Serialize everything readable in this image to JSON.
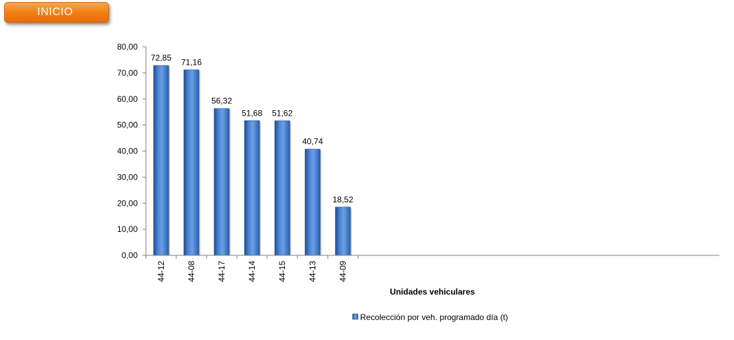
{
  "nav": {
    "inicio_label": "INICIO"
  },
  "colors": {
    "button_orange": "#f27c12",
    "bar_dark": "#2a5fa8",
    "bar_light": "#5d95e0",
    "axis": "#7f7f7f"
  },
  "chart_data": {
    "type": "bar",
    "categories": [
      "44-12",
      "44-08",
      "44-17",
      "44-14",
      "44-15",
      "44-13",
      "44-09"
    ],
    "series": [
      {
        "name": "Recolección por veh. programado día (t)",
        "values": [
          72.85,
          71.16,
          56.32,
          51.68,
          51.62,
          40.74,
          18.52
        ],
        "value_labels": [
          "72,85",
          "71,16",
          "56,32",
          "51,68",
          "51,62",
          "40,74",
          "18,52"
        ]
      }
    ],
    "title": "",
    "xlabel": "Unidades vehiculares",
    "ylabel": "",
    "ylim": [
      0,
      80
    ],
    "yticks": [
      0,
      10,
      20,
      30,
      40,
      50,
      60,
      70,
      80
    ],
    "ytick_labels": [
      "0,00",
      "10,00",
      "20,00",
      "30,00",
      "40,00",
      "50,00",
      "60,00",
      "70,00",
      "80,00"
    ],
    "grid": false,
    "legend_position": "bottom"
  }
}
